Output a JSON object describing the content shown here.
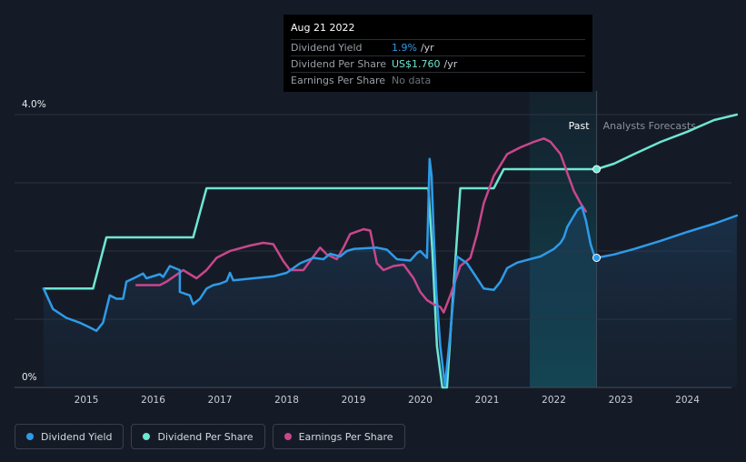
{
  "tooltip": {
    "date": "Aug 21 2022",
    "rows": [
      {
        "label": "Dividend Yield",
        "value": "1.9%",
        "unit": " /yr",
        "color": "#2e9be8"
      },
      {
        "label": "Dividend Per Share",
        "value": "US$1.760",
        "unit": " /yr",
        "color": "#6ee6d2"
      },
      {
        "label": "Earnings Per Share",
        "value": "No data",
        "unit": "",
        "color": "#6c727b"
      }
    ]
  },
  "regions": {
    "past": "Past",
    "forecast": "Analysts Forecasts"
  },
  "legend": [
    {
      "label": "Dividend Yield",
      "color": "#2e9be8"
    },
    {
      "label": "Dividend Per Share",
      "color": "#6ee6d2"
    },
    {
      "label": "Earnings Per Share",
      "color": "#c8478c"
    }
  ],
  "chart_data": {
    "type": "line",
    "title": "",
    "xlabel": "",
    "ylabel": "",
    "x_ticks": [
      "2015",
      "2016",
      "2017",
      "2018",
      "2019",
      "2020",
      "2021",
      "2022",
      "2023",
      "2024"
    ],
    "y_ticks": [
      "0%",
      "4.0%"
    ],
    "ylim": [
      0,
      4.0
    ],
    "xlim": [
      2014.36,
      2024.74
    ],
    "grid": true,
    "past_end": 2022.64,
    "highlight_start": 2021.64,
    "legend_position": "bottom-left",
    "series": [
      {
        "name": "Dividend Yield",
        "color": "#2e9be8",
        "points": [
          [
            2014.36,
            1.45
          ],
          [
            2014.5,
            1.15
          ],
          [
            2014.7,
            1.02
          ],
          [
            2014.9,
            0.95
          ],
          [
            2015.05,
            0.88
          ],
          [
            2015.15,
            0.83
          ],
          [
            2015.25,
            0.95
          ],
          [
            2015.35,
            1.35
          ],
          [
            2015.45,
            1.3
          ],
          [
            2015.55,
            1.3
          ],
          [
            2015.6,
            1.55
          ],
          [
            2015.75,
            1.62
          ],
          [
            2015.85,
            1.67
          ],
          [
            2015.9,
            1.6
          ],
          [
            2016.1,
            1.66
          ],
          [
            2016.15,
            1.62
          ],
          [
            2016.25,
            1.78
          ],
          [
            2016.4,
            1.72
          ],
          [
            2016.4,
            1.4
          ],
          [
            2016.55,
            1.35
          ],
          [
            2016.6,
            1.22
          ],
          [
            2016.7,
            1.3
          ],
          [
            2016.8,
            1.45
          ],
          [
            2016.9,
            1.5
          ],
          [
            2017.0,
            1.52
          ],
          [
            2017.1,
            1.56
          ],
          [
            2017.15,
            1.68
          ],
          [
            2017.2,
            1.57
          ],
          [
            2017.5,
            1.6
          ],
          [
            2017.8,
            1.63
          ],
          [
            2018.0,
            1.68
          ],
          [
            2018.2,
            1.82
          ],
          [
            2018.4,
            1.9
          ],
          [
            2018.55,
            1.88
          ],
          [
            2018.65,
            1.96
          ],
          [
            2018.8,
            1.92
          ],
          [
            2018.9,
            2.0
          ],
          [
            2019.0,
            2.03
          ],
          [
            2019.35,
            2.05
          ],
          [
            2019.5,
            2.02
          ],
          [
            2019.65,
            1.88
          ],
          [
            2019.85,
            1.86
          ],
          [
            2019.95,
            1.97
          ],
          [
            2020.0,
            2.0
          ],
          [
            2020.05,
            1.95
          ],
          [
            2020.1,
            1.9
          ],
          [
            2020.14,
            3.35
          ],
          [
            2020.17,
            3.1
          ],
          [
            2020.2,
            2.3
          ],
          [
            2020.24,
            1.4
          ],
          [
            2020.3,
            0.6
          ],
          [
            2020.37,
            0.02
          ],
          [
            2020.45,
            0.8
          ],
          [
            2020.55,
            1.92
          ],
          [
            2020.7,
            1.82
          ],
          [
            2020.85,
            1.6
          ],
          [
            2020.95,
            1.45
          ],
          [
            2021.1,
            1.43
          ],
          [
            2021.2,
            1.55
          ],
          [
            2021.3,
            1.75
          ],
          [
            2021.45,
            1.83
          ],
          [
            2021.6,
            1.87
          ],
          [
            2021.8,
            1.92
          ],
          [
            2022.0,
            2.03
          ],
          [
            2022.1,
            2.12
          ],
          [
            2022.15,
            2.2
          ],
          [
            2022.2,
            2.35
          ],
          [
            2022.35,
            2.6
          ],
          [
            2022.42,
            2.65
          ],
          [
            2022.48,
            2.45
          ],
          [
            2022.55,
            2.1
          ],
          [
            2022.6,
            1.95
          ],
          [
            2022.64,
            1.9
          ],
          [
            2022.9,
            1.95
          ],
          [
            2023.2,
            2.03
          ],
          [
            2023.6,
            2.15
          ],
          [
            2024.0,
            2.28
          ],
          [
            2024.4,
            2.4
          ],
          [
            2024.74,
            2.52
          ]
        ]
      },
      {
        "name": "Dividend Per Share",
        "color": "#6ee6d2",
        "points": [
          [
            2014.36,
            1.45
          ],
          [
            2015.1,
            1.45
          ],
          [
            2015.3,
            2.2
          ],
          [
            2016.6,
            2.2
          ],
          [
            2016.8,
            2.92
          ],
          [
            2020.12,
            2.92
          ],
          [
            2020.18,
            2.0
          ],
          [
            2020.25,
            0.6
          ],
          [
            2020.33,
            0.0
          ],
          [
            2020.4,
            0.0
          ],
          [
            2020.48,
            1.2
          ],
          [
            2020.6,
            2.92
          ],
          [
            2021.1,
            2.92
          ],
          [
            2021.25,
            3.2
          ],
          [
            2022.64,
            3.2
          ],
          [
            2022.9,
            3.28
          ],
          [
            2023.2,
            3.42
          ],
          [
            2023.6,
            3.6
          ],
          [
            2024.0,
            3.75
          ],
          [
            2024.4,
            3.92
          ],
          [
            2024.74,
            4.0
          ]
        ]
      },
      {
        "name": "Earnings Per Share",
        "color": "#c8478c",
        "points": [
          [
            2015.75,
            1.5
          ],
          [
            2016.1,
            1.5
          ],
          [
            2016.2,
            1.55
          ],
          [
            2016.45,
            1.72
          ],
          [
            2016.65,
            1.6
          ],
          [
            2016.8,
            1.72
          ],
          [
            2016.95,
            1.9
          ],
          [
            2017.15,
            2.0
          ],
          [
            2017.45,
            2.08
          ],
          [
            2017.65,
            2.12
          ],
          [
            2017.8,
            2.1
          ],
          [
            2017.95,
            1.85
          ],
          [
            2018.05,
            1.72
          ],
          [
            2018.25,
            1.72
          ],
          [
            2018.4,
            1.92
          ],
          [
            2018.5,
            2.05
          ],
          [
            2018.6,
            1.95
          ],
          [
            2018.75,
            1.88
          ],
          [
            2018.85,
            2.05
          ],
          [
            2018.95,
            2.25
          ],
          [
            2019.15,
            2.32
          ],
          [
            2019.25,
            2.3
          ],
          [
            2019.35,
            1.82
          ],
          [
            2019.45,
            1.72
          ],
          [
            2019.6,
            1.78
          ],
          [
            2019.75,
            1.8
          ],
          [
            2019.9,
            1.6
          ],
          [
            2020.0,
            1.4
          ],
          [
            2020.1,
            1.28
          ],
          [
            2020.2,
            1.22
          ],
          [
            2020.3,
            1.18
          ],
          [
            2020.35,
            1.1
          ],
          [
            2020.45,
            1.35
          ],
          [
            2020.6,
            1.78
          ],
          [
            2020.75,
            1.9
          ],
          [
            2020.85,
            2.25
          ],
          [
            2020.95,
            2.7
          ],
          [
            2021.1,
            3.1
          ],
          [
            2021.3,
            3.42
          ],
          [
            2021.5,
            3.52
          ],
          [
            2021.7,
            3.6
          ],
          [
            2021.85,
            3.65
          ],
          [
            2021.95,
            3.6
          ],
          [
            2022.1,
            3.42
          ],
          [
            2022.2,
            3.15
          ],
          [
            2022.3,
            2.88
          ],
          [
            2022.4,
            2.7
          ],
          [
            2022.48,
            2.58
          ]
        ]
      }
    ]
  }
}
